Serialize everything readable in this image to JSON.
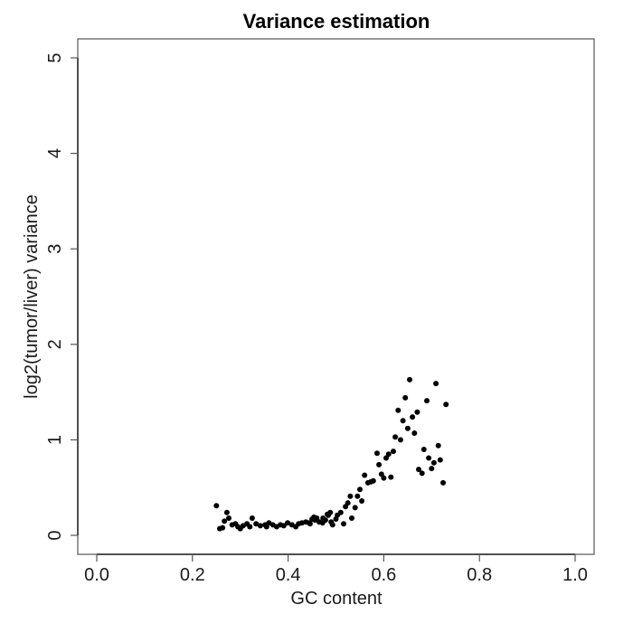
{
  "chart_data": {
    "type": "scatter",
    "title": "Variance estimation",
    "xlabel": "GC content",
    "ylabel": "log2(tumor/liver) variance",
    "xlim": [
      -0.04,
      1.04
    ],
    "ylim": [
      -0.2,
      5.2
    ],
    "xticks": [
      0.0,
      0.2,
      0.4,
      0.6,
      0.8,
      1.0
    ],
    "xtick_labels": [
      "0.0",
      "0.2",
      "0.4",
      "0.6",
      "0.8",
      "1.0"
    ],
    "yticks": [
      0,
      1,
      2,
      3,
      4,
      5
    ],
    "ytick_labels": [
      "0",
      "1",
      "2",
      "3",
      "4",
      "5"
    ],
    "grid": false,
    "legend": null,
    "marker_color": "#000000",
    "points": [
      [
        0.25,
        0.31
      ],
      [
        0.257,
        0.07
      ],
      [
        0.263,
        0.08
      ],
      [
        0.267,
        0.15
      ],
      [
        0.272,
        0.24
      ],
      [
        0.276,
        0.18
      ],
      [
        0.283,
        0.11
      ],
      [
        0.29,
        0.12
      ],
      [
        0.295,
        0.09
      ],
      [
        0.3,
        0.07
      ],
      [
        0.306,
        0.1
      ],
      [
        0.314,
        0.12
      ],
      [
        0.32,
        0.09
      ],
      [
        0.325,
        0.18
      ],
      [
        0.333,
        0.12
      ],
      [
        0.342,
        0.1
      ],
      [
        0.352,
        0.11
      ],
      [
        0.355,
        0.09
      ],
      [
        0.36,
        0.13
      ],
      [
        0.368,
        0.11
      ],
      [
        0.376,
        0.09
      ],
      [
        0.384,
        0.11
      ],
      [
        0.391,
        0.1
      ],
      [
        0.399,
        0.13
      ],
      [
        0.408,
        0.11
      ],
      [
        0.416,
        0.09
      ],
      [
        0.422,
        0.12
      ],
      [
        0.429,
        0.13
      ],
      [
        0.437,
        0.14
      ],
      [
        0.444,
        0.13
      ],
      [
        0.446,
        0.12
      ],
      [
        0.45,
        0.17
      ],
      [
        0.454,
        0.19
      ],
      [
        0.456,
        0.16
      ],
      [
        0.46,
        0.18
      ],
      [
        0.465,
        0.14
      ],
      [
        0.472,
        0.13
      ],
      [
        0.473,
        0.18
      ],
      [
        0.478,
        0.16
      ],
      [
        0.482,
        0.22
      ],
      [
        0.484,
        0.21
      ],
      [
        0.488,
        0.24
      ],
      [
        0.49,
        0.14
      ],
      [
        0.493,
        0.11
      ],
      [
        0.5,
        0.17
      ],
      [
        0.503,
        0.21
      ],
      [
        0.51,
        0.24
      ],
      [
        0.516,
        0.12
      ],
      [
        0.52,
        0.3
      ],
      [
        0.525,
        0.34
      ],
      [
        0.53,
        0.41
      ],
      [
        0.533,
        0.18
      ],
      [
        0.54,
        0.29
      ],
      [
        0.545,
        0.41
      ],
      [
        0.55,
        0.48
      ],
      [
        0.554,
        0.36
      ],
      [
        0.56,
        0.63
      ],
      [
        0.567,
        0.55
      ],
      [
        0.573,
        0.56
      ],
      [
        0.578,
        0.57
      ],
      [
        0.586,
        0.86
      ],
      [
        0.59,
        0.74
      ],
      [
        0.595,
        0.64
      ],
      [
        0.6,
        0.6
      ],
      [
        0.605,
        0.81
      ],
      [
        0.61,
        0.85
      ],
      [
        0.615,
        0.61
      ],
      [
        0.62,
        0.88
      ],
      [
        0.624,
        1.03
      ],
      [
        0.63,
        1.31
      ],
      [
        0.635,
        1.0
      ],
      [
        0.64,
        1.2
      ],
      [
        0.645,
        1.44
      ],
      [
        0.65,
        1.12
      ],
      [
        0.654,
        1.63
      ],
      [
        0.66,
        1.24
      ],
      [
        0.664,
        1.07
      ],
      [
        0.67,
        1.29
      ],
      [
        0.673,
        0.69
      ],
      [
        0.68,
        0.65
      ],
      [
        0.684,
        0.9
      ],
      [
        0.69,
        1.41
      ],
      [
        0.694,
        0.81
      ],
      [
        0.7,
        0.7
      ],
      [
        0.705,
        0.76
      ],
      [
        0.709,
        1.59
      ],
      [
        0.714,
        0.94
      ],
      [
        0.718,
        0.79
      ],
      [
        0.724,
        0.55
      ],
      [
        0.73,
        1.37
      ]
    ]
  }
}
